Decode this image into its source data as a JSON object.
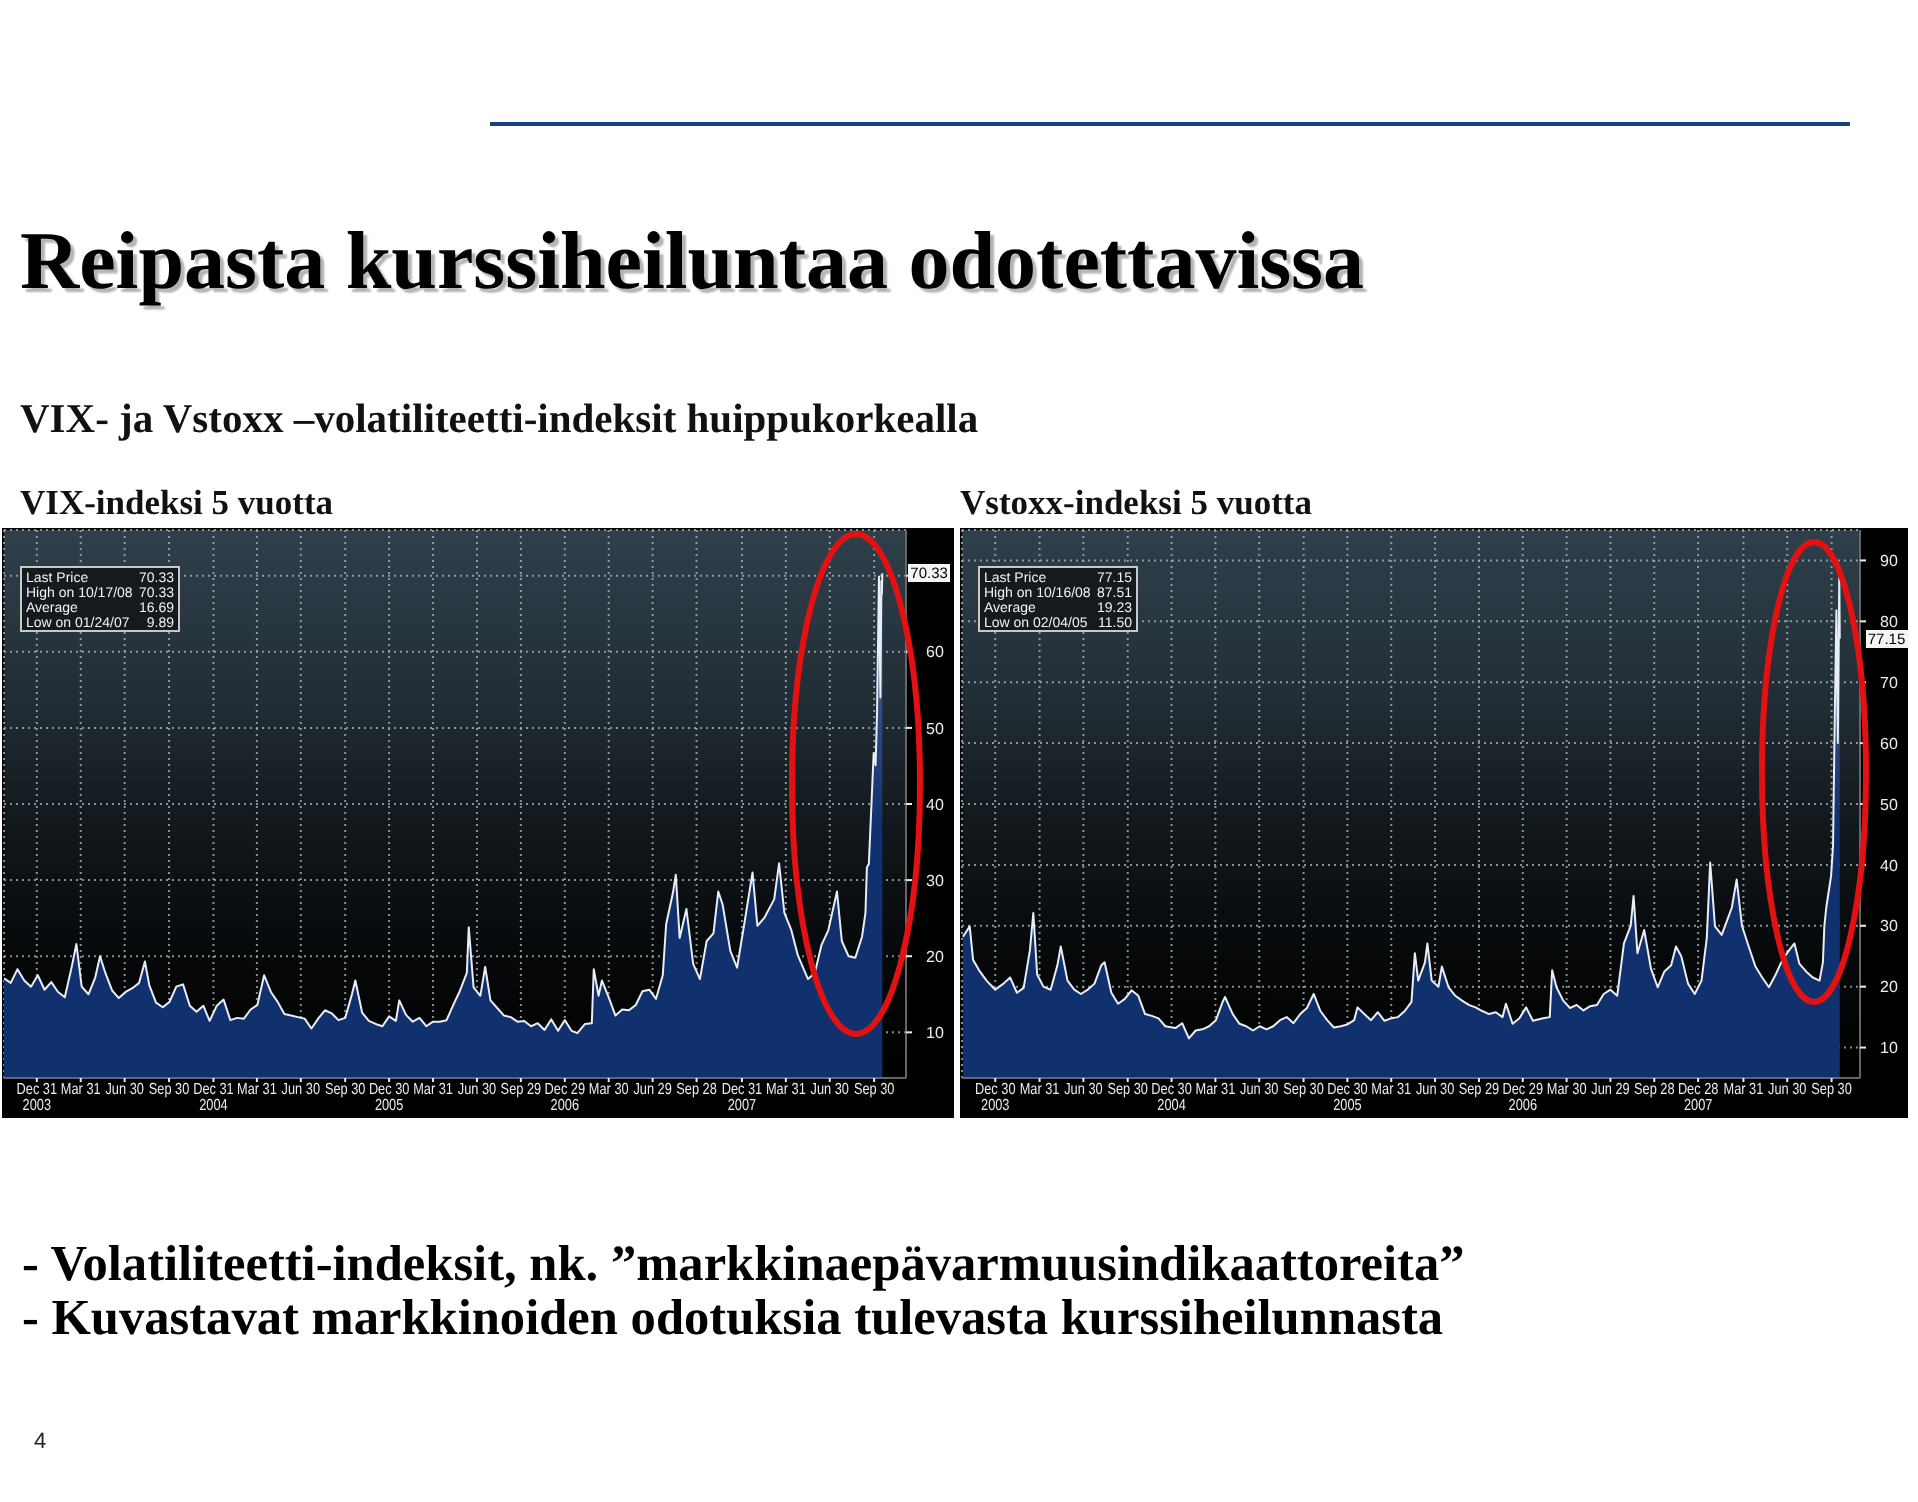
{
  "chart_data": [
    {
      "type": "other",
      "title": "Reipasta kurssiheiluntaa odotettavissa",
      "subtitle": "VIX- ja Vstoxx –volatiliteetti-indeksit huippukorkealla",
      "annotations": [
        "- Volatiliteetti-indeksit, nk. ”markkinaepävarmuusindikaattoreita”",
        "- Kuvastavat markkinoiden odotuksia tulevasta kurssiheilunnasta",
        "4"
      ]
    },
    {
      "type": "area",
      "title": "VIX-indeksi 5 vuotta",
      "color": "#10306e",
      "grid": true,
      "x": [
        "2003-10-24",
        "2003-11-07",
        "2003-11-21",
        "2003-12-05",
        "2003-12-19",
        "2004-01-02",
        "2004-01-16",
        "2004-01-30",
        "2004-02-13",
        "2004-02-27",
        "2004-03-12",
        "2004-03-22",
        "2004-04-02",
        "2004-04-16",
        "2004-04-30",
        "2004-05-10",
        "2004-05-21",
        "2004-06-04",
        "2004-06-18",
        "2004-07-02",
        "2004-07-16",
        "2004-07-30",
        "2004-08-11",
        "2004-08-20",
        "2004-09-03",
        "2004-09-17",
        "2004-10-01",
        "2004-10-15",
        "2004-10-29",
        "2004-11-12",
        "2004-11-26",
        "2004-12-10",
        "2004-12-23",
        "2005-01-07",
        "2005-01-21",
        "2005-02-04",
        "2005-02-18",
        "2005-03-04",
        "2005-03-18",
        "2005-04-01",
        "2005-04-15",
        "2005-04-29",
        "2005-05-13",
        "2005-05-27",
        "2005-06-10",
        "2005-06-24",
        "2005-07-08",
        "2005-07-22",
        "2005-08-05",
        "2005-08-19",
        "2005-09-02",
        "2005-09-16",
        "2005-09-30",
        "2005-10-14",
        "2005-10-21",
        "2005-11-04",
        "2005-11-18",
        "2005-12-02",
        "2005-12-16",
        "2005-12-30",
        "2006-01-13",
        "2006-01-20",
        "2006-02-03",
        "2006-02-17",
        "2006-03-03",
        "2006-03-17",
        "2006-03-31",
        "2006-04-14",
        "2006-04-28",
        "2006-05-12",
        "2006-05-26",
        "2006-06-09",
        "2006-06-13",
        "2006-06-23",
        "2006-07-07",
        "2006-07-17",
        "2006-07-28",
        "2006-08-11",
        "2006-08-25",
        "2006-09-08",
        "2006-09-22",
        "2006-10-06",
        "2006-10-20",
        "2006-11-03",
        "2006-11-17",
        "2006-12-01",
        "2006-12-15",
        "2006-12-29",
        "2007-01-12",
        "2007-01-24",
        "2007-02-09",
        "2007-02-23",
        "2007-02-27",
        "2007-03-09",
        "2007-03-16",
        "2007-03-30",
        "2007-04-13",
        "2007-04-27",
        "2007-05-11",
        "2007-05-25",
        "2007-06-08",
        "2007-06-22",
        "2007-07-06",
        "2007-07-20",
        "2007-07-27",
        "2007-08-10",
        "2007-08-16",
        "2007-08-24",
        "2007-09-07",
        "2007-09-21",
        "2007-10-05",
        "2007-10-19",
        "2007-11-02",
        "2007-11-12",
        "2007-11-21",
        "2007-12-07",
        "2007-12-21",
        "2008-01-04",
        "2008-01-22",
        "2008-02-01",
        "2008-02-15",
        "2008-03-07",
        "2008-03-17",
        "2008-03-28",
        "2008-04-11",
        "2008-04-25",
        "2008-05-09",
        "2008-05-16",
        "2008-05-30",
        "2008-06-13",
        "2008-06-27",
        "2008-07-15",
        "2008-07-25",
        "2008-08-08",
        "2008-08-22",
        "2008-09-05",
        "2008-09-12",
        "2008-09-15",
        "2008-09-19",
        "2008-09-29",
        "2008-10-03",
        "2008-10-06",
        "2008-10-10",
        "2008-10-13",
        "2008-10-15",
        "2008-10-16",
        "2008-10-17"
      ],
      "values": [
        17.1,
        16.5,
        18.3,
        16.8,
        16.0,
        17.5,
        15.6,
        16.6,
        15.3,
        14.6,
        18.5,
        21.6,
        16.0,
        15.0,
        17.2,
        20.0,
        17.8,
        15.5,
        14.5,
        15.3,
        15.8,
        16.5,
        19.3,
        16.2,
        13.9,
        13.3,
        14.0,
        16.0,
        16.3,
        13.5,
        12.7,
        13.5,
        11.5,
        13.5,
        14.3,
        11.6,
        11.9,
        11.8,
        13.0,
        13.6,
        17.5,
        15.3,
        14.0,
        12.4,
        12.2,
        12.0,
        11.8,
        10.5,
        11.8,
        12.9,
        12.5,
        11.6,
        11.9,
        15.0,
        16.8,
        12.6,
        11.5,
        11.1,
        10.8,
        12.1,
        11.5,
        14.2,
        12.3,
        11.4,
        11.9,
        10.8,
        11.4,
        11.4,
        11.6,
        13.6,
        15.5,
        17.8,
        23.8,
        15.9,
        14.8,
        18.6,
        14.2,
        13.2,
        12.2,
        12.0,
        11.4,
        11.5,
        10.8,
        11.2,
        10.3,
        11.7,
        10.2,
        11.6,
        10.2,
        9.89,
        11.1,
        11.2,
        18.3,
        14.8,
        16.8,
        14.6,
        12.2,
        13.0,
        12.9,
        13.6,
        15.4,
        15.6,
        14.4,
        17.5,
        24.2,
        28.3,
        30.7,
        22.4,
        26.2,
        19.0,
        17.0,
        22.0,
        23.0,
        28.5,
        26.8,
        20.7,
        18.5,
        23.9,
        31.0,
        24.0,
        25.0,
        27.5,
        32.2,
        25.7,
        23.5,
        20.1,
        18.0,
        17.0,
        17.8,
        21.5,
        23.4,
        28.5,
        22.0,
        20.0,
        19.8,
        22.6,
        25.7,
        31.7,
        32.1,
        46.7,
        45.1,
        52.0,
        69.9,
        54.0,
        69.3,
        67.6,
        70.33
      ],
      "xlim": [
        "2003-10-24",
        "2008-12-05"
      ],
      "xticks": [
        {
          "value": "2003-12-31",
          "label": "Dec 31\n2003"
        },
        {
          "value": "2004-03-31",
          "label": "Mar 31"
        },
        {
          "value": "2004-06-30",
          "label": "Jun 30"
        },
        {
          "value": "2004-09-30",
          "label": "Sep 30"
        },
        {
          "value": "2004-12-31",
          "label": "Dec 31\n2004"
        },
        {
          "value": "2005-03-31",
          "label": "Mar 31"
        },
        {
          "value": "2005-06-30",
          "label": "Jun 30"
        },
        {
          "value": "2005-09-30",
          "label": "Sep 30"
        },
        {
          "value": "2005-12-30",
          "label": "Dec 30\n2005"
        },
        {
          "value": "2006-03-31",
          "label": "Mar 31"
        },
        {
          "value": "2006-06-30",
          "label": "Jun 30"
        },
        {
          "value": "2006-09-29",
          "label": "Sep 29"
        },
        {
          "value": "2006-12-29",
          "label": "Dec 29\n2006"
        },
        {
          "value": "2007-03-30",
          "label": "Mar 30"
        },
        {
          "value": "2007-06-29",
          "label": "Jun 29"
        },
        {
          "value": "2007-09-28",
          "label": "Sep 28"
        },
        {
          "value": "2007-12-31",
          "label": "Dec 31\n2007"
        },
        {
          "value": "2008-03-31",
          "label": "Mar 31"
        },
        {
          "value": "2008-06-30",
          "label": "Jun 30"
        },
        {
          "value": "2008-09-30",
          "label": "Sep 30"
        }
      ],
      "ylim": [
        4,
        76
      ],
      "yticks": [
        10,
        20,
        30,
        40,
        50,
        60,
        {
          "value": 70,
          "label": null
        }
      ],
      "annotations": [
        "Last Price 70.33",
        "High on 10/17/08 70.33",
        "Average 16.69",
        "Low on 01/24/07 9.89",
        {
          "text": "70.33",
          "x": "2008-10-17",
          "y": 70.33
        }
      ]
    },
    {
      "type": "area",
      "title": "Vstoxx-indeksi 5 vuotta",
      "color": "#10306e",
      "grid": true,
      "x": [
        "2003-10-24",
        "2003-11-07",
        "2003-11-14",
        "2003-11-28",
        "2003-12-12",
        "2003-12-30",
        "2004-01-16",
        "2004-01-30",
        "2004-02-13",
        "2004-02-27",
        "2004-03-11",
        "2004-03-18",
        "2004-03-26",
        "2004-04-08",
        "2004-04-23",
        "2004-05-07",
        "2004-05-14",
        "2004-05-28",
        "2004-06-11",
        "2004-06-25",
        "2004-07-09",
        "2004-07-23",
        "2004-08-06",
        "2004-08-13",
        "2004-08-27",
        "2004-09-10",
        "2004-09-24",
        "2004-10-08",
        "2004-10-22",
        "2004-11-05",
        "2004-11-19",
        "2004-12-03",
        "2004-12-17",
        "2005-01-07",
        "2005-01-21",
        "2005-02-04",
        "2005-02-18",
        "2005-03-04",
        "2005-03-18",
        "2005-04-01",
        "2005-04-15",
        "2005-04-20",
        "2005-05-06",
        "2005-05-20",
        "2005-06-03",
        "2005-06-17",
        "2005-07-01",
        "2005-07-15",
        "2005-07-29",
        "2005-08-12",
        "2005-08-26",
        "2005-09-09",
        "2005-09-23",
        "2005-10-07",
        "2005-10-21",
        "2005-11-04",
        "2005-11-18",
        "2005-12-02",
        "2005-12-16",
        "2005-12-30",
        "2006-01-13",
        "2006-01-20",
        "2006-02-03",
        "2006-02-17",
        "2006-03-03",
        "2006-03-17",
        "2006-03-31",
        "2006-04-14",
        "2006-04-28",
        "2006-05-12",
        "2006-05-19",
        "2006-05-26",
        "2006-06-09",
        "2006-06-14",
        "2006-06-23",
        "2006-07-07",
        "2006-07-14",
        "2006-07-28",
        "2006-08-11",
        "2006-08-25",
        "2006-09-08",
        "2006-09-22",
        "2006-10-06",
        "2006-10-20",
        "2006-11-03",
        "2006-11-17",
        "2006-11-24",
        "2006-12-08",
        "2006-12-22",
        "2007-01-05",
        "2007-01-19",
        "2007-02-09",
        "2007-02-23",
        "2007-02-28",
        "2007-03-09",
        "2007-03-23",
        "2007-04-06",
        "2007-04-20",
        "2007-05-04",
        "2007-05-18",
        "2007-06-01",
        "2007-06-15",
        "2007-06-29",
        "2007-07-13",
        "2007-07-27",
        "2007-08-10",
        "2007-08-16",
        "2007-08-24",
        "2007-09-07",
        "2007-09-21",
        "2007-10-05",
        "2007-10-19",
        "2007-11-02",
        "2007-11-12",
        "2007-11-23",
        "2007-12-07",
        "2007-12-21",
        "2008-01-04",
        "2008-01-15",
        "2008-01-22",
        "2008-02-01",
        "2008-02-15",
        "2008-02-29",
        "2008-03-07",
        "2008-03-17",
        "2008-03-28",
        "2008-04-11",
        "2008-04-25",
        "2008-05-09",
        "2008-05-23",
        "2008-06-06",
        "2008-06-20",
        "2008-07-04",
        "2008-07-15",
        "2008-07-25",
        "2008-08-08",
        "2008-08-22",
        "2008-09-05",
        "2008-09-12",
        "2008-09-15",
        "2008-09-19",
        "2008-09-29",
        "2008-10-03",
        "2008-10-06",
        "2008-10-10",
        "2008-10-13",
        "2008-10-16",
        "2008-10-17"
      ],
      "values": [
        28.2,
        29.9,
        24.4,
        22.5,
        21.0,
        19.5,
        20.5,
        21.5,
        19.0,
        19.8,
        26.0,
        32.1,
        22.0,
        20.0,
        19.5,
        23.5,
        26.6,
        21.0,
        19.5,
        18.8,
        19.5,
        20.5,
        23.5,
        24.0,
        19.0,
        17.2,
        18.0,
        19.4,
        18.5,
        15.5,
        15.2,
        14.8,
        13.5,
        13.2,
        14.0,
        11.5,
        12.8,
        13.0,
        13.5,
        14.5,
        17.5,
        18.3,
        15.5,
        13.9,
        13.5,
        12.8,
        13.5,
        13.0,
        13.5,
        14.5,
        15.0,
        14.0,
        15.5,
        16.5,
        18.8,
        16.0,
        14.5,
        13.3,
        13.5,
        13.8,
        14.5,
        16.6,
        15.5,
        14.5,
        15.8,
        14.4,
        14.8,
        15.0,
        16.0,
        17.5,
        25.5,
        21.0,
        24.0,
        27.1,
        21.0,
        20.0,
        23.3,
        19.9,
        18.5,
        17.7,
        17.0,
        16.6,
        16.0,
        15.5,
        15.8,
        15.0,
        17.2,
        13.9,
        14.8,
        16.6,
        14.4,
        14.8,
        15.0,
        22.7,
        19.9,
        17.7,
        16.5,
        17.0,
        16.1,
        16.8,
        17.0,
        18.8,
        19.5,
        18.5,
        27.1,
        30.0,
        34.9,
        25.5,
        29.3,
        23.0,
        19.9,
        22.5,
        23.5,
        26.6,
        25.0,
        20.5,
        18.8,
        21.0,
        28.0,
        40.4,
        29.9,
        28.5,
        31.5,
        33.0,
        37.6,
        30.0,
        26.6,
        23.3,
        21.5,
        19.9,
        22.0,
        24.4,
        26.0,
        27.1,
        23.8,
        22.5,
        21.5,
        21.0,
        24.0,
        29.9,
        33.0,
        38.2,
        43.1,
        60.8,
        81.8,
        60.0,
        87.51,
        77.15
      ],
      "xlim": [
        "2003-10-22",
        "2008-11-28"
      ],
      "xticks": [
        {
          "value": "2003-12-30",
          "label": "Dec 30\n2003"
        },
        {
          "value": "2004-03-31",
          "label": "Mar 31"
        },
        {
          "value": "2004-06-30",
          "label": "Jun 30"
        },
        {
          "value": "2004-09-30",
          "label": "Sep 30"
        },
        {
          "value": "2004-12-30",
          "label": "Dec 30\n2004"
        },
        {
          "value": "2005-03-31",
          "label": "Mar 31"
        },
        {
          "value": "2005-06-30",
          "label": "Jun 30"
        },
        {
          "value": "2005-09-30",
          "label": "Sep 30"
        },
        {
          "value": "2005-12-30",
          "label": "Dec 30\n2005"
        },
        {
          "value": "2006-03-31",
          "label": "Mar 31"
        },
        {
          "value": "2006-06-30",
          "label": "Jun 30"
        },
        {
          "value": "2006-09-29",
          "label": "Sep 29"
        },
        {
          "value": "2006-12-29",
          "label": "Dec 29\n2006"
        },
        {
          "value": "2007-03-30",
          "label": "Mar 30"
        },
        {
          "value": "2007-06-29",
          "label": "Jun 29"
        },
        {
          "value": "2007-09-28",
          "label": "Sep 28"
        },
        {
          "value": "2007-12-28",
          "label": "Dec 28\n2007"
        },
        {
          "value": "2008-03-31",
          "label": "Mar 31"
        },
        {
          "value": "2008-06-30",
          "label": "Jun 30"
        },
        {
          "value": "2008-09-30",
          "label": "Sep 30"
        }
      ],
      "ylim": [
        5,
        95
      ],
      "yticks": [
        10,
        20,
        30,
        40,
        50,
        60,
        70,
        80,
        90
      ],
      "annotations": [
        "Last Price 77.15",
        "High on 10/16/08 87.51",
        "Average 19.23",
        "Low on 02/04/05 11.50",
        {
          "text": "77.15",
          "x": "2008-10-17",
          "y": 77.15
        }
      ]
    }
  ]
}
